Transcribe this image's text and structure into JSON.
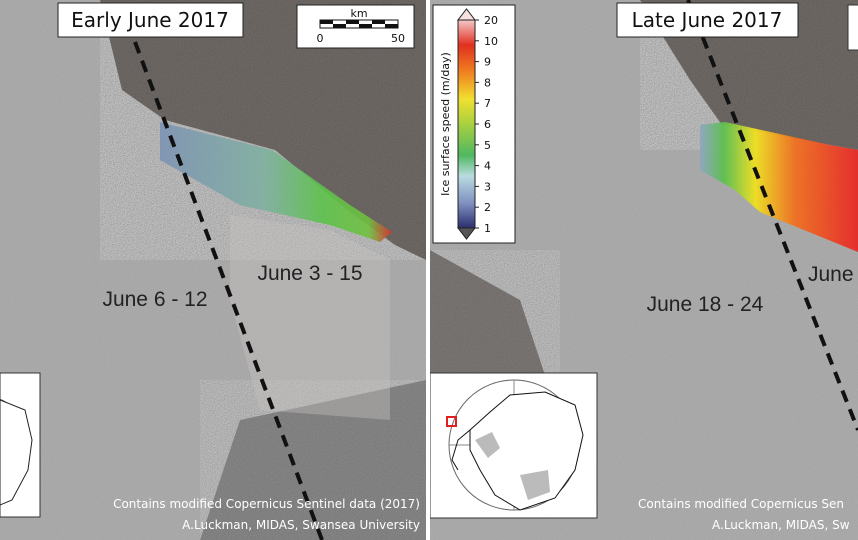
{
  "panels": [
    {
      "title": "Early June 2017",
      "labels": [
        "June 6 - 12",
        "June 3 - 15"
      ],
      "credit": [
        "Contains modified Copernicus Sentinel data (2017)",
        "A.Luckman, MIDAS, Swansea University"
      ]
    },
    {
      "title": "Late June 2017",
      "labels": [
        "June 18 - 24",
        "June"
      ],
      "credit": [
        "Contains modified Copernicus Sen",
        "A.Luckman, MIDAS, Sw"
      ]
    }
  ],
  "scale_bar": {
    "unit": "km",
    "ticks": [
      0,
      50
    ]
  },
  "colorbar": {
    "title": "Ice surface speed (m/day)",
    "ticks": [
      1,
      2,
      3,
      4,
      5,
      6,
      7,
      8,
      9,
      10,
      20
    ]
  }
}
